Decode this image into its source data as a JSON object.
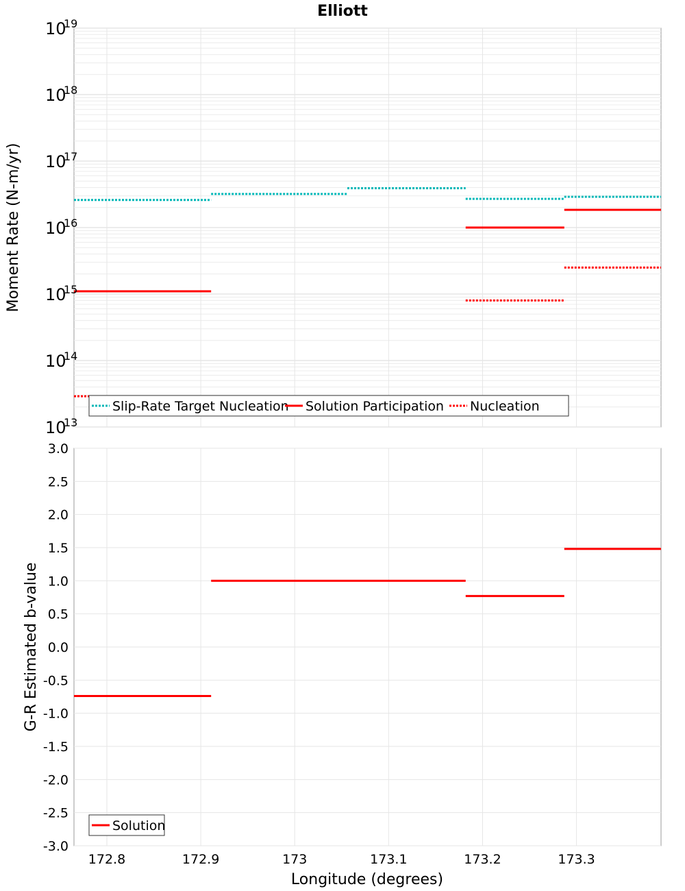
{
  "chart_data": [
    {
      "type": "line",
      "title": "Elliott",
      "xlabel": "",
      "ylabel": "Moment Rate (N-m/yr)",
      "yscale": "log",
      "xlim": [
        172.765,
        173.39
      ],
      "ylim": [
        10000000000000.0,
        1e+19
      ],
      "ytick_exponents": [
        13,
        14,
        15,
        16,
        17,
        18,
        19
      ],
      "ytick_base": "10",
      "grid": true,
      "legend_position": "bottom-left",
      "series": [
        {
          "name": "Slip-Rate Target Nucleation",
          "color": "#00b7b7",
          "style": "dotted",
          "segments": [
            {
              "x": [
                172.765,
                172.911
              ],
              "y": 2.6e+16
            },
            {
              "x": [
                172.911,
                173.056
              ],
              "y": 3.2e+16
            },
            {
              "x": [
                173.056,
                173.182
              ],
              "y": 3.9e+16
            },
            {
              "x": [
                173.182,
                173.287
              ],
              "y": 2.7e+16
            },
            {
              "x": [
                173.287,
                173.39
              ],
              "y": 2.9e+16
            }
          ]
        },
        {
          "name": "Solution Participation",
          "color": "#ff0000",
          "style": "solid",
          "segments": [
            {
              "x": [
                172.765,
                172.911
              ],
              "y": 1100000000000000.0
            },
            {
              "x": [
                173.182,
                173.287
              ],
              "y": 1e+16
            },
            {
              "x": [
                173.287,
                173.39
              ],
              "y": 1.85e+16
            }
          ]
        },
        {
          "name": "Nucleation",
          "color": "#ff0000",
          "style": "dotted",
          "segments": [
            {
              "x": [
                172.765,
                172.911
              ],
              "y": 29000000000000.0
            },
            {
              "x": [
                173.182,
                173.287
              ],
              "y": 800000000000000.0
            },
            {
              "x": [
                173.287,
                173.39
              ],
              "y": 2500000000000000.0
            }
          ]
        }
      ]
    },
    {
      "type": "line",
      "title": "",
      "xlabel": "Longitude (degrees)",
      "ylabel": "G-R Estimated b-value",
      "xlim": [
        172.765,
        173.39
      ],
      "ylim": [
        -3.0,
        3.0
      ],
      "xticks": [
        172.8,
        172.9,
        173.0,
        173.1,
        173.2,
        173.3
      ],
      "xtick_labels": [
        "172.8",
        "172.9",
        "173",
        "173.1",
        "173.2",
        "173.3"
      ],
      "yticks": [
        -3.0,
        -2.5,
        -2.0,
        -1.5,
        -1.0,
        -0.5,
        0.0,
        0.5,
        1.0,
        1.5,
        2.0,
        2.5,
        3.0
      ],
      "ytick_labels": [
        "-3.0",
        "-2.5",
        "-2.0",
        "-1.5",
        "-1.0",
        "-0.5",
        "0.0",
        "0.5",
        "1.0",
        "1.5",
        "2.0",
        "2.5",
        "3.0"
      ],
      "grid": true,
      "legend_position": "bottom-left",
      "series": [
        {
          "name": "Solution",
          "color": "#ff0000",
          "style": "solid",
          "segments": [
            {
              "x": [
                172.765,
                172.911
              ],
              "y": -0.74
            },
            {
              "x": [
                172.911,
                173.182
              ],
              "y": 1.0
            },
            {
              "x": [
                173.182,
                173.287
              ],
              "y": 0.77
            },
            {
              "x": [
                173.287,
                173.39
              ],
              "y": 1.48
            }
          ]
        }
      ]
    }
  ]
}
